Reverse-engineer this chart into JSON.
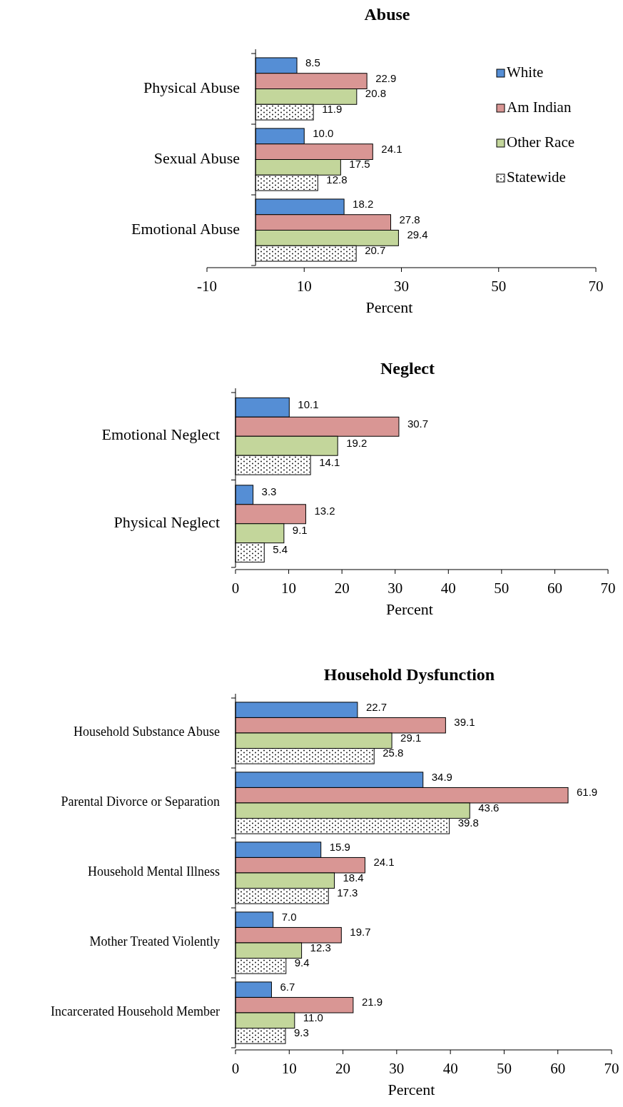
{
  "chart_data": [
    {
      "type": "bar",
      "orientation": "horizontal",
      "title": "Abuse",
      "xlabel": "Percent",
      "categories": [
        "Physical Abuse",
        "Sexual Abuse",
        "Emotional Abuse"
      ],
      "series": [
        {
          "name": "White",
          "color": "#558ed5",
          "values": [
            8.5,
            10.0,
            18.2
          ],
          "value_labels": [
            "8.5",
            "10.0",
            "18.2"
          ]
        },
        {
          "name": "Am Indian",
          "color": "#d99694",
          "values": [
            22.9,
            24.1,
            27.8
          ],
          "value_labels": [
            "22.9",
            "24.1",
            "27.8"
          ]
        },
        {
          "name": "Other Race",
          "color": "#c3d69b",
          "values": [
            20.8,
            17.5,
            29.4
          ],
          "value_labels": [
            "20.8",
            "17.5",
            "29.4"
          ]
        },
        {
          "name": "Statewide",
          "color": "#ffffff",
          "values": [
            11.9,
            12.8,
            20.7
          ],
          "value_labels": [
            "11.9",
            "12.8",
            "20.7"
          ]
        }
      ],
      "xlim": [
        -10,
        70
      ],
      "xticks": [
        -10,
        10,
        30,
        50,
        70
      ],
      "legend": "right"
    },
    {
      "type": "bar",
      "orientation": "horizontal",
      "title": "Neglect",
      "xlabel": "Percent",
      "categories": [
        "Emotional Neglect",
        "Physical Neglect"
      ],
      "series": [
        {
          "color": "#558ed5",
          "values": [
            10.1,
            3.3
          ],
          "value_labels": [
            "10.1",
            "3.3"
          ]
        },
        {
          "color": "#d99694",
          "values": [
            30.7,
            13.2
          ],
          "value_labels": [
            "30.7",
            "13.2"
          ]
        },
        {
          "color": "#c3d69b",
          "values": [
            19.2,
            9.1
          ],
          "value_labels": [
            "19.2",
            "9.1"
          ]
        },
        {
          "color": "#ffffff",
          "values": [
            14.1,
            5.4
          ],
          "value_labels": [
            "14.1",
            "5.4"
          ]
        }
      ],
      "xlim": [
        0,
        70
      ],
      "xticks": [
        0,
        10,
        20,
        30,
        40,
        50,
        60,
        70
      ]
    },
    {
      "type": "bar",
      "orientation": "horizontal",
      "title": "Household Dysfunction",
      "xlabel": "Percent",
      "categories": [
        "Household Substance Abuse",
        "Parental Divorce or Separation",
        "Household Mental Illness",
        "Mother Treated Violently",
        "Incarcerated Household Member"
      ],
      "series": [
        {
          "color": "#558ed5",
          "values": [
            22.7,
            34.9,
            15.9,
            7.0,
            6.7
          ],
          "value_labels": [
            "22.7",
            "34.9",
            "15.9",
            "7.0",
            "6.7"
          ]
        },
        {
          "color": "#d99694",
          "values": [
            39.1,
            61.9,
            24.1,
            19.7,
            21.9
          ],
          "value_labels": [
            "39.1",
            "61.9",
            "24.1",
            "19.7",
            "21.9"
          ]
        },
        {
          "color": "#c3d69b",
          "values": [
            29.1,
            43.6,
            18.4,
            12.3,
            11.0
          ],
          "value_labels": [
            "29.1",
            "43.6",
            "18.4",
            "12.3",
            "11.0"
          ]
        },
        {
          "color": "#ffffff",
          "values": [
            25.8,
            39.8,
            17.3,
            9.4,
            9.3
          ],
          "value_labels": [
            "25.8",
            "39.8",
            "17.3",
            "9.4",
            "9.3"
          ]
        }
      ],
      "xlim": [
        0,
        70
      ],
      "xticks": [
        0,
        10,
        20,
        30,
        40,
        50,
        60,
        70
      ]
    }
  ]
}
